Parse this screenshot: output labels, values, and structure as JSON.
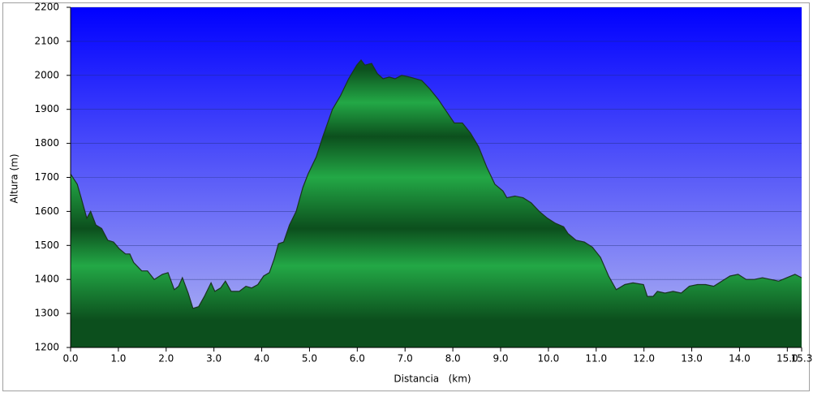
{
  "chart_data": {
    "type": "area",
    "x_label": "Distancia   (km)",
    "y_label": "Altura (m)",
    "color": "#23a846",
    "shade_color": "#0c4f1d",
    "line_color": "#1a3320",
    "background_colors": [
      "#0000ff",
      "#b4b8f2"
    ],
    "grid": true,
    "xlim": [
      0,
      15.3
    ],
    "xticks": [
      {
        "value": 0,
        "label": "0.0"
      },
      {
        "value": 1,
        "label": "1.0"
      },
      {
        "value": 2,
        "label": "2.0"
      },
      {
        "value": 3,
        "label": "3.0"
      },
      {
        "value": 4,
        "label": "4.0"
      },
      {
        "value": 5,
        "label": "5.0"
      },
      {
        "value": 6,
        "label": "6.0"
      },
      {
        "value": 7,
        "label": "7.0"
      },
      {
        "value": 8,
        "label": "8.0"
      },
      {
        "value": 9,
        "label": "9.0"
      },
      {
        "value": 10,
        "label": "10.0"
      },
      {
        "value": 11,
        "label": "11.0"
      },
      {
        "value": 12,
        "label": "12.0"
      },
      {
        "value": 13,
        "label": "13.0"
      },
      {
        "value": 14,
        "label": "14.0"
      },
      {
        "value": 15,
        "label": "15.0"
      },
      15.3
    ],
    "ylim": [
      1200,
      2200
    ],
    "yticks": [
      1200,
      1300,
      1400,
      1500,
      1600,
      1700,
      1800,
      1900,
      2000,
      2100,
      2200
    ],
    "x": [
      0.0,
      0.14,
      0.22,
      0.34,
      0.42,
      0.53,
      0.65,
      0.78,
      0.9,
      1.02,
      1.15,
      1.24,
      1.32,
      1.49,
      1.61,
      1.75,
      1.92,
      2.04,
      2.17,
      2.26,
      2.34,
      2.46,
      2.56,
      2.68,
      2.8,
      2.94,
      3.02,
      3.14,
      3.24,
      3.36,
      3.53,
      3.67,
      3.79,
      3.92,
      4.04,
      4.16,
      4.26,
      4.35,
      4.46,
      4.58,
      4.72,
      4.86,
      4.97,
      5.14,
      5.28,
      5.48,
      5.65,
      5.82,
      5.99,
      6.08,
      6.16,
      6.3,
      6.42,
      6.54,
      6.67,
      6.79,
      6.93,
      7.1,
      7.35,
      7.52,
      7.69,
      7.86,
      8.03,
      8.2,
      8.37,
      8.54,
      8.71,
      8.88,
      9.05,
      9.13,
      9.3,
      9.47,
      9.64,
      9.81,
      9.98,
      10.15,
      10.32,
      10.41,
      10.58,
      10.75,
      10.92,
      11.09,
      11.26,
      11.42,
      11.6,
      11.77,
      11.99,
      12.07,
      12.19,
      12.28,
      12.44,
      12.61,
      12.78,
      12.95,
      13.12,
      13.29,
      13.46,
      13.63,
      13.8,
      13.97,
      14.14,
      14.31,
      14.48,
      14.65,
      14.82,
      14.99,
      15.16,
      15.3
    ],
    "values": [
      1710,
      1680,
      1640,
      1580,
      1600,
      1560,
      1550,
      1515,
      1510,
      1490,
      1475,
      1475,
      1450,
      1425,
      1425,
      1400,
      1415,
      1420,
      1370,
      1380,
      1405,
      1360,
      1315,
      1320,
      1350,
      1390,
      1365,
      1375,
      1395,
      1365,
      1365,
      1380,
      1375,
      1385,
      1410,
      1420,
      1460,
      1505,
      1510,
      1560,
      1600,
      1670,
      1710,
      1760,
      1820,
      1900,
      1940,
      1990,
      2030,
      2045,
      2030,
      2035,
      2005,
      1990,
      1995,
      1990,
      2000,
      1995,
      1985,
      1960,
      1930,
      1895,
      1860,
      1860,
      1830,
      1790,
      1730,
      1680,
      1660,
      1640,
      1645,
      1640,
      1625,
      1600,
      1580,
      1565,
      1555,
      1535,
      1515,
      1510,
      1495,
      1465,
      1410,
      1370,
      1385,
      1390,
      1385,
      1350,
      1350,
      1365,
      1360,
      1365,
      1360,
      1380,
      1385,
      1385,
      1380,
      1395,
      1410,
      1415,
      1400,
      1400,
      1405,
      1400,
      1395,
      1405,
      1415,
      1405
    ]
  }
}
